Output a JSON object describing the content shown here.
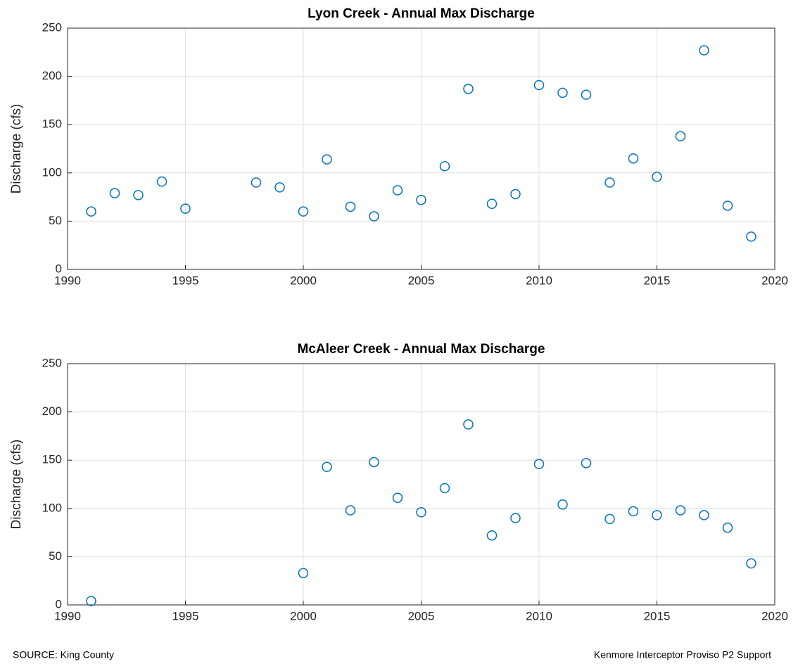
{
  "chart_data": [
    {
      "type": "scatter",
      "title": "Lyon Creek - Annual Max Discharge",
      "ylabel": "Discharge (cfs)",
      "x": [
        1991,
        1992,
        1993,
        1994,
        1995,
        1998,
        1999,
        2000,
        2001,
        2002,
        2003,
        2004,
        2005,
        2006,
        2007,
        2008,
        2009,
        2010,
        2011,
        2012,
        2013,
        2014,
        2015,
        2016,
        2017,
        2018,
        2019
      ],
      "values": [
        60,
        79,
        77,
        91,
        63,
        90,
        85,
        60,
        114,
        65,
        55,
        82,
        72,
        107,
        187,
        68,
        78,
        191,
        183,
        181,
        90,
        115,
        96,
        138,
        227,
        66,
        34
      ],
      "color": "#0072bd",
      "xlim": [
        1990,
        2020
      ],
      "ylim": [
        0,
        250
      ],
      "xticks": [
        1990,
        1995,
        2000,
        2005,
        2010,
        2015,
        2020
      ],
      "yticks": [
        0,
        50,
        100,
        150,
        200,
        250
      ],
      "grid": true
    },
    {
      "type": "scatter",
      "title": "McAleer Creek - Annual Max Discharge",
      "ylabel": "Discharge (cfs)",
      "x": [
        1991,
        2000,
        2001,
        2002,
        2003,
        2004,
        2005,
        2006,
        2007,
        2008,
        2009,
        2010,
        2011,
        2012,
        2013,
        2014,
        2015,
        2016,
        2017,
        2018,
        2019
      ],
      "values": [
        4,
        33,
        143,
        98,
        148,
        111,
        96,
        121,
        187,
        72,
        90,
        146,
        104,
        147,
        89,
        97,
        93,
        98,
        93,
        80,
        43
      ],
      "color": "#0072bd",
      "xlim": [
        1990,
        2020
      ],
      "ylim": [
        0,
        250
      ],
      "xticks": [
        1990,
        1995,
        2000,
        2005,
        2010,
        2015,
        2020
      ],
      "yticks": [
        0,
        50,
        100,
        150,
        200,
        250
      ],
      "grid": true
    }
  ],
  "footer": {
    "left": "SOURCE:  King County",
    "right": "Kenmore Interceptor Proviso P2 Support"
  }
}
